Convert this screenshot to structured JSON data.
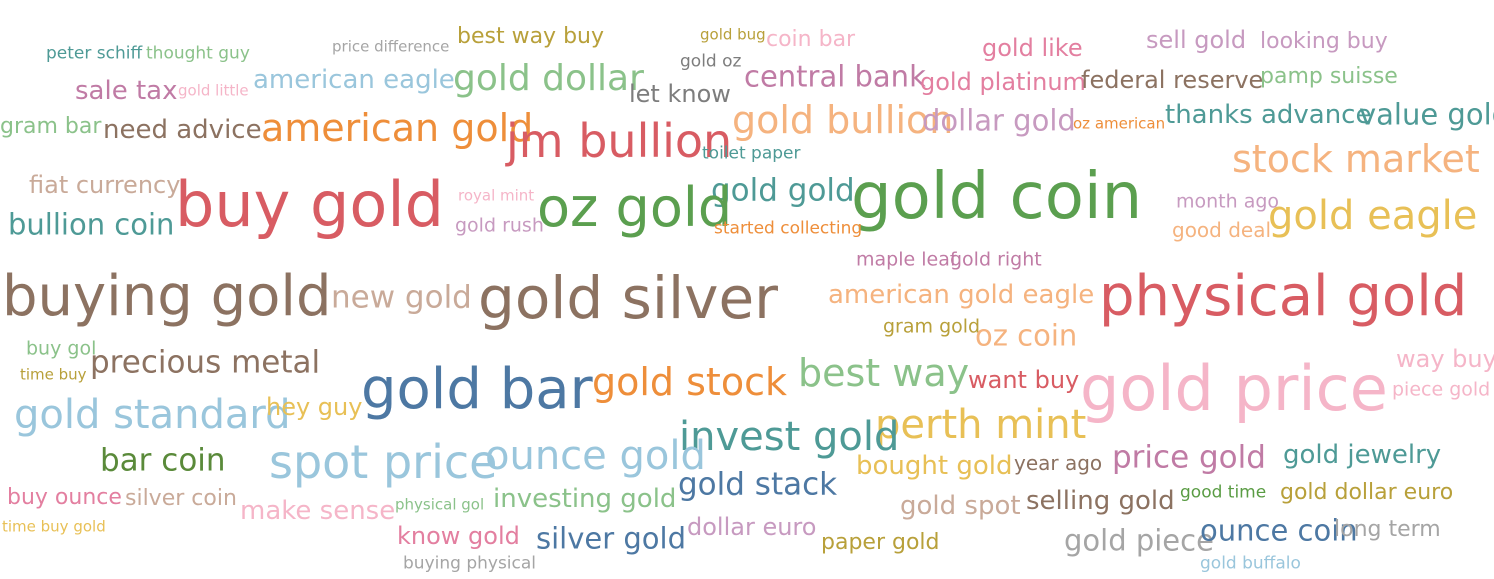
{
  "palette": {
    "teal": "#4e9a96",
    "sage": "#8bc28a",
    "grey": "#a5a5a5",
    "olive": "#b8a03a",
    "tan": "#d3a87c",
    "mauve": "#c07ba5",
    "pink": "#e37fa0",
    "blush": "#f5b5c8",
    "lavender": "#c79ac0",
    "orange": "#ee8e3a",
    "peach": "#f5b37f",
    "brown": "#8c7261",
    "red": "#d85c63",
    "ltblue": "#9ac6dc",
    "blue": "#4d78a3",
    "green": "#5b9f4f",
    "gold": "#e8c056",
    "darkgrey": "#7d7d7d",
    "darkolive": "#5a8a3a",
    "taupe": "#c9aa99",
    "dgreen": "#5a9c44"
  },
  "words": [
    {
      "t": "peter schiff",
      "c": "teal"
    },
    {
      "t": "thought guy",
      "c": "sage"
    },
    {
      "t": "price difference",
      "c": "grey"
    },
    {
      "t": "best way buy",
      "c": "olive"
    },
    {
      "t": "gold bug",
      "c": "olive"
    },
    {
      "t": "coin bar",
      "c": "blush"
    },
    {
      "t": "gold like",
      "c": "pink"
    },
    {
      "t": "sell gold",
      "c": "lavender"
    },
    {
      "t": "looking buy",
      "c": "lavender"
    },
    {
      "t": "gold oz",
      "c": "darkgrey"
    },
    {
      "t": "sale tax",
      "c": "mauve"
    },
    {
      "t": "gold little",
      "c": "blush"
    },
    {
      "t": "american eagle",
      "c": "ltblue"
    },
    {
      "t": "gold dollar",
      "c": "sage"
    },
    {
      "t": "central bank",
      "c": "mauve"
    },
    {
      "t": "gold platinum",
      "c": "pink"
    },
    {
      "t": "federal reserve",
      "c": "brown"
    },
    {
      "t": "pamp suisse",
      "c": "sage"
    },
    {
      "t": "let know",
      "c": "darkgrey"
    },
    {
      "t": "gram bar",
      "c": "sage"
    },
    {
      "t": "need advice",
      "c": "brown"
    },
    {
      "t": "american gold",
      "c": "orange"
    },
    {
      "t": "gold bullion",
      "c": "peach"
    },
    {
      "t": "dollar gold",
      "c": "lavender"
    },
    {
      "t": "oz american",
      "c": "orange"
    },
    {
      "t": "thanks advance",
      "c": "teal"
    },
    {
      "t": "value gold",
      "c": "teal"
    },
    {
      "t": "jm bullion",
      "c": "red"
    },
    {
      "t": "toilet paper",
      "c": "teal"
    },
    {
      "t": "stock market",
      "c": "peach"
    },
    {
      "t": "fiat currency",
      "c": "taupe"
    },
    {
      "t": "buy gold",
      "c": "red"
    },
    {
      "t": "royal mint",
      "c": "blush"
    },
    {
      "t": "gold gold",
      "c": "teal"
    },
    {
      "t": "gold coin",
      "c": "green"
    },
    {
      "t": "month ago",
      "c": "lavender"
    },
    {
      "t": "bullion coin",
      "c": "teal"
    },
    {
      "t": "oz gold",
      "c": "green"
    },
    {
      "t": "gold eagle",
      "c": "gold"
    },
    {
      "t": "gold rush",
      "c": "lavender"
    },
    {
      "t": "started collecting",
      "c": "orange"
    },
    {
      "t": "good deal",
      "c": "peach"
    },
    {
      "t": "maple leaf",
      "c": "mauve"
    },
    {
      "t": "gold right",
      "c": "mauve"
    },
    {
      "t": "buying gold",
      "c": "brown"
    },
    {
      "t": "new gold",
      "c": "taupe"
    },
    {
      "t": "gold silver",
      "c": "brown"
    },
    {
      "t": "american gold eagle",
      "c": "peach"
    },
    {
      "t": "physical gold",
      "c": "red"
    },
    {
      "t": "gram gold",
      "c": "olive"
    },
    {
      "t": "oz coin",
      "c": "peach"
    },
    {
      "t": "buy gol",
      "c": "sage"
    },
    {
      "t": "time buy",
      "c": "olive"
    },
    {
      "t": "precious metal",
      "c": "brown"
    },
    {
      "t": "gold bar",
      "c": "blue"
    },
    {
      "t": "gold stock",
      "c": "orange"
    },
    {
      "t": "best way",
      "c": "sage"
    },
    {
      "t": "want buy",
      "c": "red"
    },
    {
      "t": "gold price",
      "c": "blush"
    },
    {
      "t": "way buy",
      "c": "blush"
    },
    {
      "t": "piece gold",
      "c": "blush"
    },
    {
      "t": "gold standard",
      "c": "ltblue"
    },
    {
      "t": "hey guy",
      "c": "gold"
    },
    {
      "t": "perth mint",
      "c": "gold"
    },
    {
      "t": "invest gold",
      "c": "teal"
    },
    {
      "t": "bar coin",
      "c": "darkolive"
    },
    {
      "t": "spot price",
      "c": "ltblue"
    },
    {
      "t": "ounce gold",
      "c": "ltblue"
    },
    {
      "t": "bought gold",
      "c": "gold"
    },
    {
      "t": "year ago",
      "c": "brown"
    },
    {
      "t": "price gold",
      "c": "mauve"
    },
    {
      "t": "gold jewelry",
      "c": "teal"
    },
    {
      "t": "buy ounce",
      "c": "pink"
    },
    {
      "t": "silver coin",
      "c": "taupe"
    },
    {
      "t": "physical gol",
      "c": "sage"
    },
    {
      "t": "investing gold",
      "c": "sage"
    },
    {
      "t": "gold stack",
      "c": "blue"
    },
    {
      "t": "make sense",
      "c": "blush"
    },
    {
      "t": "gold spot",
      "c": "taupe"
    },
    {
      "t": "selling gold",
      "c": "brown"
    },
    {
      "t": "good time",
      "c": "dgreen"
    },
    {
      "t": "gold dollar euro",
      "c": "olive"
    },
    {
      "t": "time buy gold",
      "c": "gold"
    },
    {
      "t": "know gold",
      "c": "pink"
    },
    {
      "t": "dollar euro",
      "c": "lavender"
    },
    {
      "t": "silver gold",
      "c": "blue"
    },
    {
      "t": "paper gold",
      "c": "olive"
    },
    {
      "t": "gold piece",
      "c": "grey"
    },
    {
      "t": "ounce coin",
      "c": "blue"
    },
    {
      "t": "long term",
      "c": "grey"
    },
    {
      "t": "buying physical",
      "c": "grey"
    },
    {
      "t": "gold buffalo",
      "c": "ltblue"
    }
  ]
}
